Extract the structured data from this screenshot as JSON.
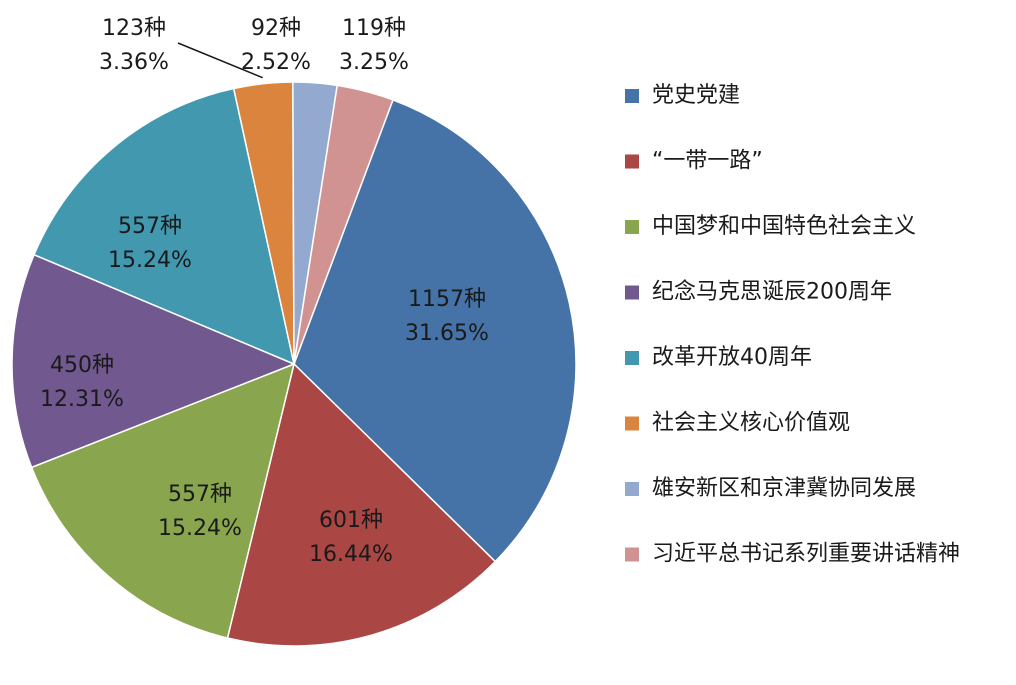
{
  "chart_data": {
    "type": "pie",
    "title": "",
    "legend_position": "right",
    "categories": [
      "党史党建",
      "“一带一路”",
      "中国梦和中国特色社会主义",
      "纪念马克思诞辰200周年",
      "改革开放40周年",
      "社会主义核心价值观",
      "雄安新区和京津冀协同发展",
      "习近平总书记系列重要讲话精神"
    ],
    "values": [
      1157,
      601,
      557,
      450,
      557,
      123,
      92,
      119
    ],
    "value_labels": [
      "1157种",
      "601种",
      "557种",
      "450种",
      "557种",
      "123种",
      "92种",
      "119种"
    ],
    "percent_labels": [
      "31.65%",
      "16.44%",
      "15.24%",
      "12.31%",
      "15.24%",
      "3.36%",
      "2.52%",
      "3.25%"
    ],
    "colors": [
      "#4572A7",
      "#AA4643",
      "#89A54E",
      "#71588F",
      "#4198AF",
      "#DB843D",
      "#93A9CF",
      "#D19392"
    ]
  }
}
